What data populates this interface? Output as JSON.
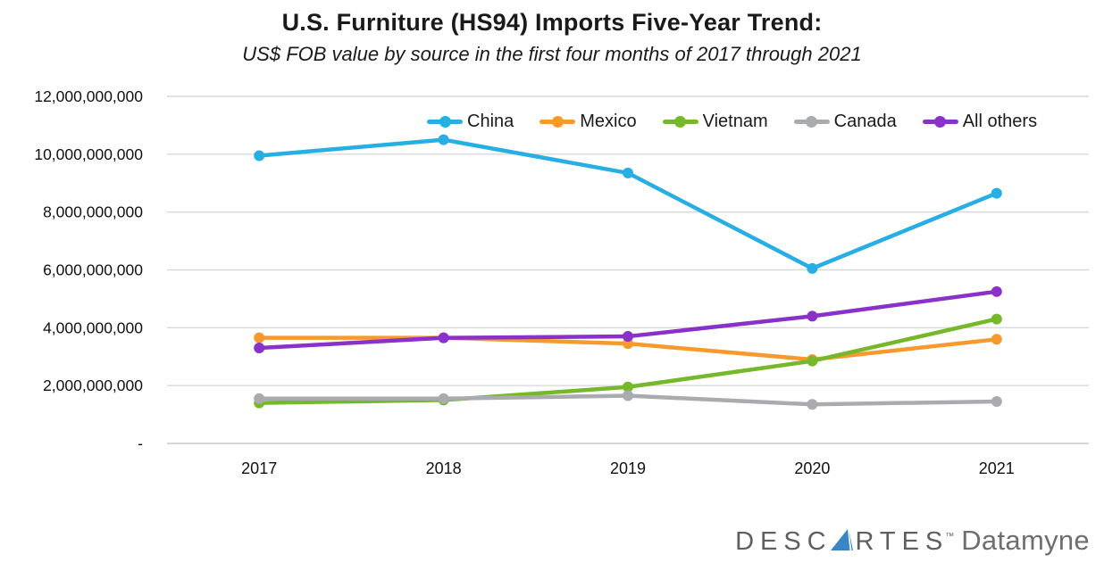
{
  "page": {
    "background": "#FFFFFF"
  },
  "chart_data": {
    "type": "line",
    "title": "U.S. Furniture (HS94) Imports Five-Year Trend:",
    "subtitle": "US$ FOB value by source in the first four months of 2017 through 2021",
    "categories": [
      "2017",
      "2018",
      "2019",
      "2020",
      "2021"
    ],
    "series": [
      {
        "name": "China",
        "color": "#27AEE4",
        "values": [
          9950000000,
          10500000000,
          9350000000,
          6050000000,
          8650000000
        ]
      },
      {
        "name": "Mexico",
        "color": "#F8992D",
        "values": [
          3650000000,
          3650000000,
          3450000000,
          2900000000,
          3600000000
        ]
      },
      {
        "name": "Vietnam",
        "color": "#76B82B",
        "values": [
          1400000000,
          1500000000,
          1950000000,
          2850000000,
          4300000000
        ]
      },
      {
        "name": "Canada",
        "color": "#A9ABAE",
        "values": [
          1550000000,
          1550000000,
          1650000000,
          1350000000,
          1450000000
        ]
      },
      {
        "name": "All others",
        "color": "#8931C9",
        "values": [
          3300000000,
          3650000000,
          3700000000,
          4400000000,
          5250000000
        ]
      }
    ],
    "ylim": [
      0,
      12000000000
    ],
    "ytick_step": 2000000000,
    "ytick_labels": [
      "-",
      "2,000,000,000",
      "4,000,000,000",
      "6,000,000,000",
      "8,000,000,000",
      "10,000,000,000",
      "12,000,000,000"
    ],
    "grid": "horizontal",
    "gridline_color": "#D9D9D9",
    "axis_line_color": "#C8C8C8",
    "axis_text_color": "#111111",
    "legend_position": "top-center"
  },
  "branding": {
    "wordmark_left": "DESC",
    "wordmark_right": "RTES",
    "trademark": "™",
    "product": "Datamyne",
    "wordmark_color": "#5E5F61",
    "product_color": "#6D6E71",
    "sail_color": "#3A86C5"
  }
}
